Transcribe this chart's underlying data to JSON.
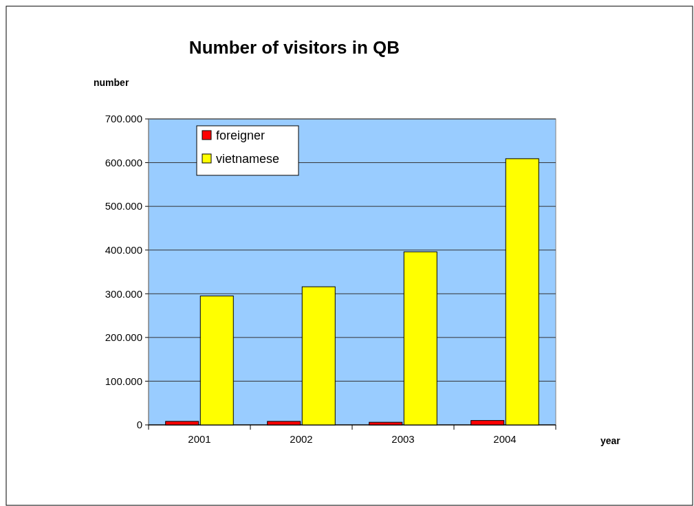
{
  "chart_data": {
    "type": "bar",
    "title": "Number of visitors in QB",
    "xlabel": "year",
    "ylabel": "number",
    "categories": [
      "2001",
      "2002",
      "2003",
      "2004"
    ],
    "series": [
      {
        "name": "foreigner",
        "color": "#ff0000",
        "values": [
          8000,
          8000,
          6000,
          10000
        ]
      },
      {
        "name": "vietnamese",
        "color": "#ffff00",
        "values": [
          295000,
          316000,
          396000,
          609000
        ]
      }
    ],
    "ylim": [
      0,
      700000
    ],
    "yticks": [
      {
        "value": 0,
        "label": "0"
      },
      {
        "value": 100000,
        "label": "100.000"
      },
      {
        "value": 200000,
        "label": "200.000"
      },
      {
        "value": 300000,
        "label": "300.000"
      },
      {
        "value": 400000,
        "label": "400.000"
      },
      {
        "value": 500000,
        "label": "500.000"
      },
      {
        "value": 600000,
        "label": "600.000"
      },
      {
        "value": 700000,
        "label": "700.000"
      }
    ],
    "grid": "y",
    "legend": "top left"
  }
}
